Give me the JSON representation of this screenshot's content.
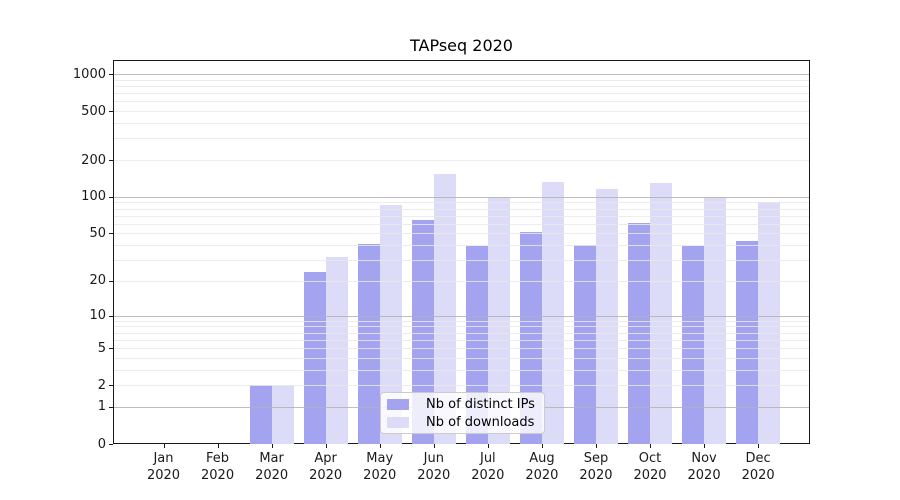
{
  "colors": {
    "ips_bar": "#a3a3f0",
    "downloads_bar": "#dcdcf8",
    "major_gridline": "#b3b3b3",
    "minor_gridline": "#e9e9e9",
    "axis": "#1a1a1a",
    "legend_border": "#cccccc"
  },
  "legend": {
    "items": [
      {
        "label": "Nb of distinct IPs",
        "series": "ips"
      },
      {
        "label": "Nb of downloads",
        "series": "downloads"
      }
    ]
  },
  "chart_data": {
    "type": "bar",
    "title": "TAPseq 2020",
    "xlabel": "",
    "ylabel": "",
    "y_scale": "log1p (y position proportional to log10(1+value), 0 at baseline)",
    "categories": [
      "Jan 2020",
      "Feb 2020",
      "Mar 2020",
      "Apr 2020",
      "May 2020",
      "Jun 2020",
      "Jul 2020",
      "Aug 2020",
      "Sep 2020",
      "Oct 2020",
      "Nov 2020",
      "Dec 2020"
    ],
    "series": [
      {
        "name": "Nb of distinct IPs",
        "values": [
          0,
          0,
          2,
          24,
          41,
          65,
          39,
          51,
          40,
          61,
          39,
          43
        ]
      },
      {
        "name": "Nb of downloads",
        "values": [
          0,
          0,
          2,
          32,
          85,
          155,
          99,
          133,
          115,
          130,
          100,
          90
        ]
      }
    ],
    "y_ticks": [
      0,
      1,
      2,
      5,
      10,
      20,
      50,
      100,
      200,
      500,
      1000
    ],
    "ylim": [
      0,
      1300
    ],
    "grid": "horizontal major (1,10,100,1000) and minor (2-9 per decade), drawn over bars",
    "legend_position": "inside lower-center"
  }
}
